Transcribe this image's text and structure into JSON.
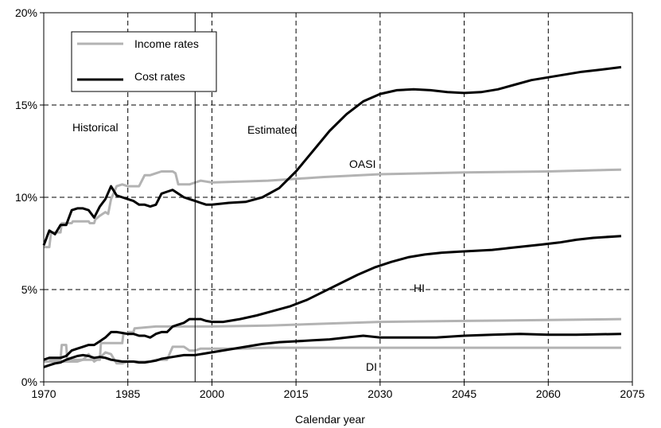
{
  "chart_data": {
    "type": "line",
    "title": "",
    "xlabel": "Calendar year",
    "ylabel": "",
    "xlim": [
      1970,
      2075
    ],
    "ylim": [
      0,
      20
    ],
    "x_ticks": [
      1970,
      1985,
      2000,
      2015,
      2030,
      2045,
      2060,
      2075
    ],
    "x_tick_labels": [
      "1970",
      "1985",
      "2000",
      "2015",
      "2030",
      "2045",
      "2060",
      "2075"
    ],
    "y_ticks": [
      0,
      5,
      10,
      15,
      20
    ],
    "y_tick_labels": [
      "0%",
      "5%",
      "10%",
      "15%",
      "20%"
    ],
    "grid": "dashed",
    "historical_estimated_divider_year": 1997,
    "legend": {
      "placement": "top-left",
      "entries": [
        {
          "label": "Income rates",
          "color": "#b3b3b3"
        },
        {
          "label": "Cost rates",
          "color": "#000000"
        }
      ]
    },
    "annotations": {
      "historical": "Historical",
      "estimated": "Estimated",
      "oasi": "OASI",
      "hi": "HI",
      "di": "DI"
    },
    "series": [
      {
        "name": "OASI",
        "kind": "Income rates",
        "color": "#b3b3b3",
        "points": [
          [
            1970,
            7.3
          ],
          [
            1971,
            7.3
          ],
          [
            1971.3,
            8.1
          ],
          [
            1973,
            8.1
          ],
          [
            1973.2,
            8.6
          ],
          [
            1975,
            8.6
          ],
          [
            1975.2,
            8.7
          ],
          [
            1978,
            8.7
          ],
          [
            1978.2,
            8.6
          ],
          [
            1979,
            8.6
          ],
          [
            1979.2,
            8.8
          ],
          [
            1980,
            9.0
          ],
          [
            1981,
            9.2
          ],
          [
            1981.5,
            9.1
          ],
          [
            1982,
            9.9
          ],
          [
            1983,
            10.6
          ],
          [
            1984,
            10.7
          ],
          [
            1985,
            10.6
          ],
          [
            1986,
            10.6
          ],
          [
            1987,
            10.6
          ],
          [
            1988,
            11.2
          ],
          [
            1989,
            11.2
          ],
          [
            1990,
            11.3
          ],
          [
            1991,
            11.4
          ],
          [
            1992,
            11.4
          ],
          [
            1993,
            11.4
          ],
          [
            1993.5,
            11.3
          ],
          [
            1994,
            10.7
          ],
          [
            1996,
            10.7
          ],
          [
            1997,
            10.8
          ],
          [
            1998,
            10.9
          ],
          [
            2000,
            10.8
          ],
          [
            2010,
            10.9
          ],
          [
            2020,
            11.1
          ],
          [
            2030,
            11.25
          ],
          [
            2045,
            11.35
          ],
          [
            2060,
            11.4
          ],
          [
            2073,
            11.5
          ]
        ]
      },
      {
        "name": "OASI",
        "kind": "Cost rates",
        "color": "#000000",
        "points": [
          [
            1970,
            7.4
          ],
          [
            1971,
            8.2
          ],
          [
            1972,
            8.0
          ],
          [
            1973,
            8.5
          ],
          [
            1974,
            8.5
          ],
          [
            1975,
            9.3
          ],
          [
            1976,
            9.4
          ],
          [
            1977,
            9.4
          ],
          [
            1978,
            9.3
          ],
          [
            1979,
            8.9
          ],
          [
            1980,
            9.5
          ],
          [
            1981,
            9.9
          ],
          [
            1982,
            10.6
          ],
          [
            1983,
            10.1
          ],
          [
            1984,
            10.0
          ],
          [
            1985,
            9.9
          ],
          [
            1986,
            9.8
          ],
          [
            1987,
            9.6
          ],
          [
            1988,
            9.6
          ],
          [
            1989,
            9.5
          ],
          [
            1990,
            9.6
          ],
          [
            1991,
            10.2
          ],
          [
            1992,
            10.3
          ],
          [
            1993,
            10.4
          ],
          [
            1994,
            10.2
          ],
          [
            1995,
            10.0
          ],
          [
            1996,
            9.9
          ],
          [
            1997,
            9.8
          ],
          [
            1998,
            9.7
          ],
          [
            1999,
            9.6
          ],
          [
            2000,
            9.6
          ],
          [
            2003,
            9.7
          ],
          [
            2006,
            9.75
          ],
          [
            2009,
            10.0
          ],
          [
            2012,
            10.5
          ],
          [
            2015,
            11.4
          ],
          [
            2018,
            12.5
          ],
          [
            2021,
            13.6
          ],
          [
            2024,
            14.5
          ],
          [
            2027,
            15.2
          ],
          [
            2030,
            15.6
          ],
          [
            2033,
            15.8
          ],
          [
            2036,
            15.85
          ],
          [
            2039,
            15.8
          ],
          [
            2042,
            15.7
          ],
          [
            2045,
            15.65
          ],
          [
            2048,
            15.7
          ],
          [
            2051,
            15.85
          ],
          [
            2054,
            16.1
          ],
          [
            2057,
            16.35
          ],
          [
            2060,
            16.5
          ],
          [
            2063,
            16.65
          ],
          [
            2066,
            16.8
          ],
          [
            2069,
            16.9
          ],
          [
            2073,
            17.05
          ]
        ]
      },
      {
        "name": "HI",
        "kind": "Income rates",
        "color": "#b3b3b3",
        "points": [
          [
            1970,
            1.1
          ],
          [
            1971,
            1.1
          ],
          [
            1971.2,
            1.2
          ],
          [
            1973,
            1.2
          ],
          [
            1973.2,
            2.0
          ],
          [
            1974,
            2.0
          ],
          [
            1974.2,
            1.2
          ],
          [
            1980,
            1.2
          ],
          [
            1980.2,
            2.1
          ],
          [
            1984,
            2.1
          ],
          [
            1984.2,
            2.6
          ],
          [
            1985,
            2.6
          ],
          [
            1985.2,
            2.7
          ],
          [
            1986,
            2.7
          ],
          [
            1986.2,
            2.9
          ],
          [
            1990,
            3.0
          ],
          [
            2000,
            3.0
          ],
          [
            2010,
            3.05
          ],
          [
            2020,
            3.15
          ],
          [
            2030,
            3.25
          ],
          [
            2045,
            3.3
          ],
          [
            2060,
            3.35
          ],
          [
            2073,
            3.4
          ]
        ]
      },
      {
        "name": "HI",
        "kind": "Cost rates",
        "color": "#000000",
        "points": [
          [
            1970,
            1.2
          ],
          [
            1971,
            1.3
          ],
          [
            1972,
            1.3
          ],
          [
            1973,
            1.3
          ],
          [
            1974,
            1.4
          ],
          [
            1975,
            1.7
          ],
          [
            1976,
            1.8
          ],
          [
            1977,
            1.9
          ],
          [
            1978,
            2.0
          ],
          [
            1979,
            2.0
          ],
          [
            1980,
            2.2
          ],
          [
            1981,
            2.4
          ],
          [
            1982,
            2.7
          ],
          [
            1983,
            2.7
          ],
          [
            1984,
            2.65
          ],
          [
            1985,
            2.6
          ],
          [
            1986,
            2.6
          ],
          [
            1987,
            2.5
          ],
          [
            1988,
            2.5
          ],
          [
            1989,
            2.4
          ],
          [
            1990,
            2.6
          ],
          [
            1991,
            2.7
          ],
          [
            1992,
            2.7
          ],
          [
            1993,
            3.0
          ],
          [
            1994,
            3.1
          ],
          [
            1995,
            3.2
          ],
          [
            1996,
            3.4
          ],
          [
            1997,
            3.4
          ],
          [
            1998,
            3.4
          ],
          [
            1999,
            3.3
          ],
          [
            2000,
            3.25
          ],
          [
            2002,
            3.25
          ],
          [
            2005,
            3.4
          ],
          [
            2008,
            3.6
          ],
          [
            2011,
            3.85
          ],
          [
            2014,
            4.1
          ],
          [
            2017,
            4.45
          ],
          [
            2020,
            4.9
          ],
          [
            2023,
            5.35
          ],
          [
            2026,
            5.8
          ],
          [
            2029,
            6.2
          ],
          [
            2032,
            6.5
          ],
          [
            2035,
            6.75
          ],
          [
            2038,
            6.9
          ],
          [
            2041,
            7.0
          ],
          [
            2044,
            7.05
          ],
          [
            2047,
            7.1
          ],
          [
            2050,
            7.15
          ],
          [
            2053,
            7.25
          ],
          [
            2056,
            7.35
          ],
          [
            2059,
            7.45
          ],
          [
            2062,
            7.55
          ],
          [
            2065,
            7.7
          ],
          [
            2068,
            7.8
          ],
          [
            2073,
            7.9
          ]
        ]
      },
      {
        "name": "DI",
        "kind": "Income rates",
        "color": "#b3b3b3",
        "points": [
          [
            1970,
            1.1
          ],
          [
            1976,
            1.1
          ],
          [
            1977,
            1.2
          ],
          [
            1978,
            1.5
          ],
          [
            1979,
            1.1
          ],
          [
            1980,
            1.3
          ],
          [
            1981,
            1.6
          ],
          [
            1982,
            1.5
          ],
          [
            1983,
            1.0
          ],
          [
            1984,
            1.0
          ],
          [
            1985,
            1.1
          ],
          [
            1987,
            1.1
          ],
          [
            1988,
            1.1
          ],
          [
            1989,
            1.1
          ],
          [
            1990,
            1.2
          ],
          [
            1992,
            1.2
          ],
          [
            1993,
            1.9
          ],
          [
            1995,
            1.9
          ],
          [
            1996,
            1.7
          ],
          [
            1997,
            1.7
          ],
          [
            1998,
            1.8
          ],
          [
            2000,
            1.8
          ],
          [
            2005,
            1.8
          ],
          [
            2010,
            1.85
          ],
          [
            2020,
            1.85
          ],
          [
            2030,
            1.85
          ],
          [
            2045,
            1.85
          ],
          [
            2060,
            1.85
          ],
          [
            2073,
            1.85
          ]
        ]
      },
      {
        "name": "DI",
        "kind": "Cost rates",
        "color": "#000000",
        "points": [
          [
            1970,
            0.8
          ],
          [
            1971,
            0.9
          ],
          [
            1972,
            1.0
          ],
          [
            1973,
            1.05
          ],
          [
            1974,
            1.2
          ],
          [
            1975,
            1.3
          ],
          [
            1976,
            1.4
          ],
          [
            1977,
            1.45
          ],
          [
            1978,
            1.4
          ],
          [
            1979,
            1.3
          ],
          [
            1980,
            1.35
          ],
          [
            1981,
            1.3
          ],
          [
            1982,
            1.2
          ],
          [
            1983,
            1.15
          ],
          [
            1984,
            1.1
          ],
          [
            1985,
            1.1
          ],
          [
            1986,
            1.1
          ],
          [
            1987,
            1.05
          ],
          [
            1988,
            1.05
          ],
          [
            1989,
            1.1
          ],
          [
            1990,
            1.15
          ],
          [
            1991,
            1.25
          ],
          [
            1992,
            1.3
          ],
          [
            1993,
            1.35
          ],
          [
            1994,
            1.4
          ],
          [
            1995,
            1.45
          ],
          [
            1996,
            1.45
          ],
          [
            1997,
            1.45
          ],
          [
            1998,
            1.5
          ],
          [
            2000,
            1.6
          ],
          [
            2003,
            1.75
          ],
          [
            2006,
            1.9
          ],
          [
            2009,
            2.05
          ],
          [
            2012,
            2.15
          ],
          [
            2015,
            2.2
          ],
          [
            2018,
            2.25
          ],
          [
            2021,
            2.3
          ],
          [
            2024,
            2.4
          ],
          [
            2027,
            2.5
          ],
          [
            2030,
            2.4
          ],
          [
            2035,
            2.4
          ],
          [
            2040,
            2.4
          ],
          [
            2045,
            2.5
          ],
          [
            2050,
            2.55
          ],
          [
            2055,
            2.6
          ],
          [
            2060,
            2.55
          ],
          [
            2065,
            2.55
          ],
          [
            2073,
            2.6
          ]
        ]
      }
    ]
  }
}
